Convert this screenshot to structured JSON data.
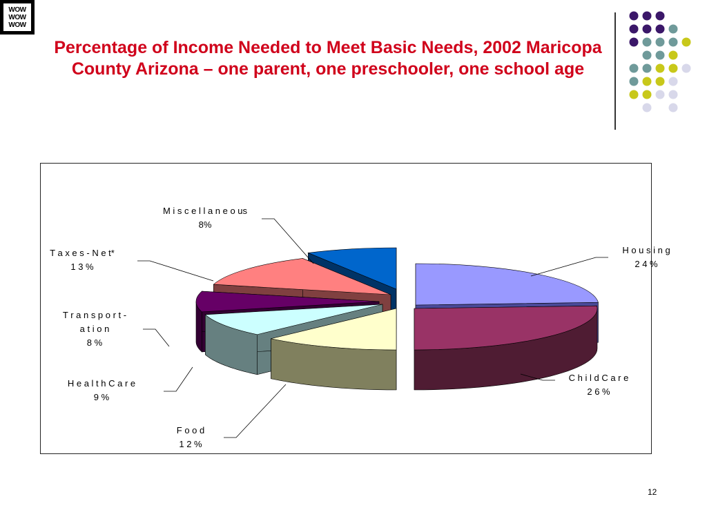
{
  "logo": {
    "lines": [
      "WOW",
      "WOW",
      "WOW"
    ]
  },
  "title": "Percentage of Income Needed to Meet Basic Needs, 2002 Maricopa County Arizona – one parent, one preschooler, one school age",
  "slide_number": "12",
  "colors": {
    "title": "#d0021b",
    "dot_purple": "#3b1769",
    "dot_teal": "#6f9a9a",
    "dot_yellow": "#c8c81a",
    "dot_lavender": "#d8d8ea"
  },
  "chart_data": {
    "type": "pie",
    "style": "3d-exploded",
    "title": "",
    "slices": [
      {
        "name": "Housing",
        "label_lines": [
          "H o u s i n g",
          "2 4 %"
        ],
        "value": 24,
        "color": "#9999ff",
        "side_color": "#4a4a99"
      },
      {
        "name": "Child Care",
        "label_lines": [
          "C h i l d  C a r e",
          "2 6 %"
        ],
        "value": 26,
        "color": "#993366",
        "side_color": "#4f1c33"
      },
      {
        "name": "Food",
        "label_lines": [
          "F o o d",
          "1 2 %"
        ],
        "value": 12,
        "color": "#ffffcc",
        "side_color": "#80805e"
      },
      {
        "name": "Health Care",
        "label_lines": [
          "H e a l t h  C a r e",
          "9 %"
        ],
        "value": 9,
        "color": "#ccffff",
        "side_color": "#668080"
      },
      {
        "name": "Transportation",
        "label_lines": [
          "T r a n s p o r t -",
          "a t i o n",
          "8 %"
        ],
        "value": 8,
        "color": "#660066",
        "side_color": "#330033"
      },
      {
        "name": "Taxes-Net*",
        "label_lines": [
          "T a x e s - N e t*",
          "1 3 %"
        ],
        "value": 13,
        "color": "#ff8080",
        "side_color": "#804040"
      },
      {
        "name": "Miscellaneous",
        "label_lines": [
          "M i s c e l l a n e o us",
          "8%"
        ],
        "value": 8,
        "color": "#0066cc",
        "side_color": "#003366"
      }
    ],
    "legend": "none"
  }
}
